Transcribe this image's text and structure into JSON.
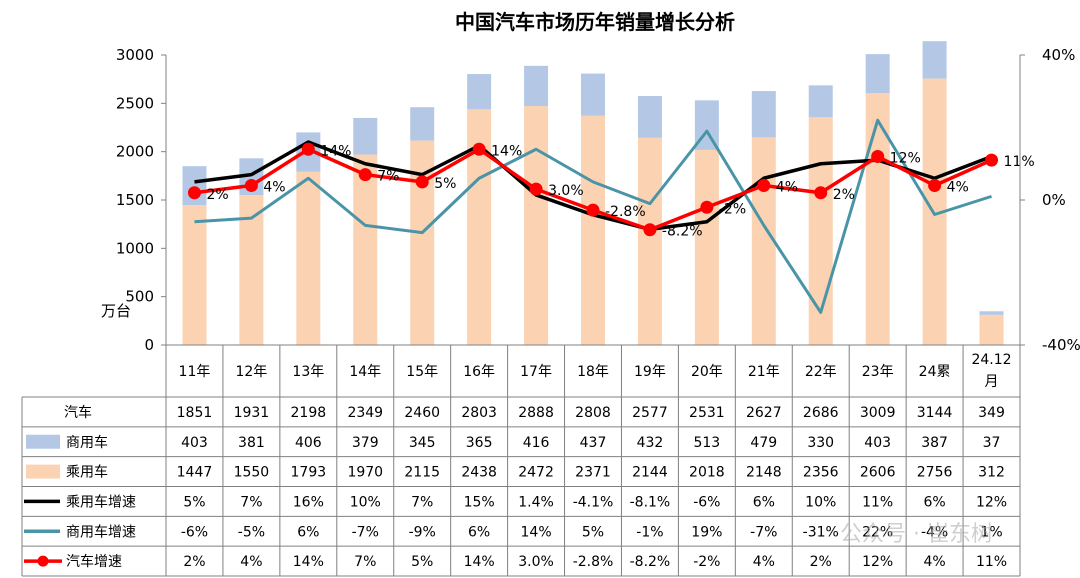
{
  "chart_data": {
    "type": "bar",
    "title": "中国汽车市场历年销量增长分析",
    "ylabel": "万台",
    "ylim": [
      0,
      3000
    ],
    "yticks": [
      0,
      500,
      1000,
      1500,
      2000,
      2500,
      3000
    ],
    "y2lim": [
      -40,
      40
    ],
    "y2ticks": [
      "-40%",
      "0%",
      "40%"
    ],
    "categories": [
      "11年",
      "12年",
      "13年",
      "14年",
      "15年",
      "16年",
      "17年",
      "18年",
      "19年",
      "20年",
      "21年",
      "22年",
      "23年",
      "24累",
      "24.12月"
    ],
    "stacked_bars": [
      {
        "name": "乘用车",
        "color": "#fbd3b3",
        "values": [
          1447,
          1550,
          1793,
          1970,
          2115,
          2438,
          2472,
          2371,
          2144,
          2018,
          2148,
          2356,
          2606,
          2756,
          312
        ]
      },
      {
        "name": "商用车",
        "color": "#b4c8e6",
        "values": [
          403,
          381,
          406,
          379,
          345,
          365,
          416,
          437,
          432,
          513,
          479,
          330,
          403,
          387,
          37
        ]
      }
    ],
    "total": {
      "name": "汽车",
      "values": [
        1851,
        1931,
        2198,
        2349,
        2460,
        2803,
        2888,
        2808,
        2577,
        2531,
        2627,
        2686,
        3009,
        3144,
        349
      ]
    },
    "growth_lines": [
      {
        "name": "乘用车增速",
        "color": "#000000",
        "values": [
          5,
          7,
          16,
          10,
          7,
          15,
          1.4,
          -4.1,
          -8.1,
          -6,
          6,
          10,
          11,
          6,
          12
        ],
        "labels": [
          "5%",
          "7%",
          "16%",
          "10%",
          "7%",
          "15%",
          "1.4%",
          "-4.1%",
          "-8.1%",
          "-6%",
          "6%",
          "10%",
          "11%",
          "6%",
          "12%"
        ]
      },
      {
        "name": "商用车增速",
        "color": "#4a94a8",
        "values": [
          -6,
          -5,
          6,
          -7,
          -9,
          6,
          14,
          5,
          -1,
          19,
          -7,
          -31,
          22,
          -4,
          1
        ],
        "labels": [
          "-6%",
          "-5%",
          "6%",
          "-7%",
          "-9%",
          "6%",
          "14%",
          "5%",
          "-1%",
          "19%",
          "-7%",
          "-31%",
          "22%",
          "-4%",
          "1%"
        ]
      },
      {
        "name": "汽车增速",
        "color": "#ff0000",
        "values": [
          2,
          4,
          14,
          7,
          5,
          14,
          3.0,
          -2.8,
          -8.2,
          -2,
          4,
          2,
          12,
          4,
          11
        ],
        "labels": [
          "2%",
          "4%",
          "14%",
          "7%",
          "5%",
          "14%",
          "3.0%",
          "-2.8%",
          "-8.2%",
          "-2%",
          "4%",
          "2%",
          "12%",
          "4%",
          "11%"
        ]
      }
    ],
    "legend": "table-bottom",
    "grid": false
  },
  "watermark": "公众号 · 崔东树"
}
